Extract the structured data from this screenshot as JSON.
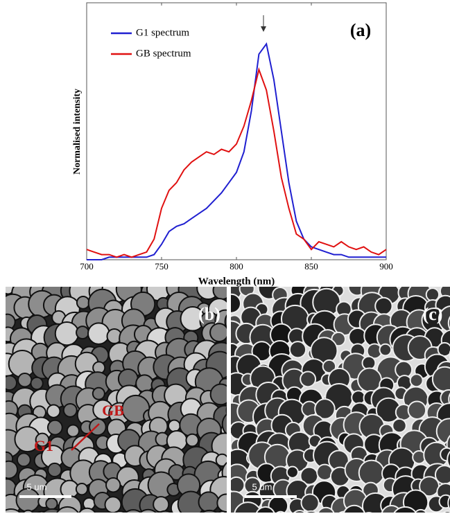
{
  "chart_data": {
    "type": "line",
    "y_label": "Normalised intensity",
    "x_label": "Wavelength (nm)",
    "annotation": "(a)",
    "x": [
      700,
      705,
      710,
      715,
      720,
      725,
      730,
      735,
      740,
      745,
      750,
      755,
      760,
      765,
      770,
      775,
      780,
      785,
      790,
      795,
      800,
      805,
      810,
      815,
      820,
      825,
      830,
      835,
      840,
      845,
      850,
      855,
      860,
      865,
      870,
      875,
      880,
      885,
      890,
      895,
      900
    ],
    "series": [
      {
        "name": "G1 spectrum",
        "color": "#1f1fd0",
        "values": [
          0.0,
          0.0,
          0.0,
          0.01,
          0.01,
          0.01,
          0.01,
          0.01,
          0.01,
          0.02,
          0.06,
          0.11,
          0.13,
          0.14,
          0.16,
          0.18,
          0.2,
          0.23,
          0.26,
          0.3,
          0.34,
          0.42,
          0.58,
          0.8,
          0.84,
          0.7,
          0.5,
          0.3,
          0.15,
          0.08,
          0.05,
          0.04,
          0.03,
          0.02,
          0.02,
          0.01,
          0.01,
          0.01,
          0.01,
          0.01,
          0.01
        ]
      },
      {
        "name": "GB spectrum",
        "color": "#e01010",
        "values": [
          0.04,
          0.03,
          0.02,
          0.02,
          0.01,
          0.02,
          0.01,
          0.02,
          0.03,
          0.08,
          0.2,
          0.27,
          0.3,
          0.35,
          0.38,
          0.4,
          0.42,
          0.41,
          0.43,
          0.42,
          0.45,
          0.52,
          0.62,
          0.74,
          0.66,
          0.5,
          0.32,
          0.2,
          0.1,
          0.08,
          0.04,
          0.07,
          0.06,
          0.05,
          0.07,
          0.05,
          0.04,
          0.05,
          0.03,
          0.02,
          0.04
        ]
      }
    ],
    "xlim": [
      700,
      900
    ],
    "xticks": [
      700,
      750,
      800,
      850,
      900
    ],
    "ylim": [
      0,
      1
    ],
    "grid": false,
    "legend": "upper left"
  },
  "images": [
    {
      "label": "(b)",
      "annotations": [
        "GB",
        "G1"
      ],
      "scale_bar": "5 um"
    },
    {
      "label": "(c)",
      "scale_bar": "5 um"
    }
  ]
}
